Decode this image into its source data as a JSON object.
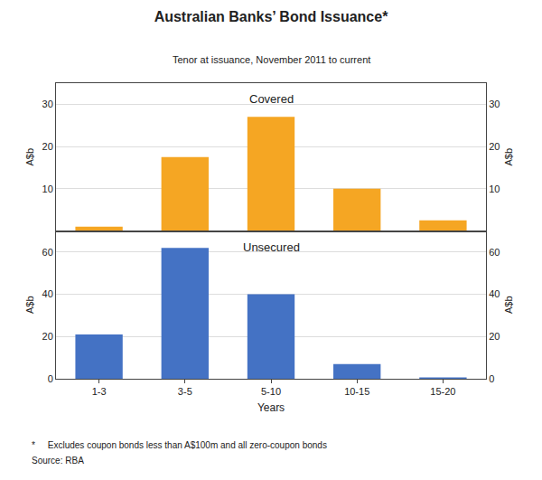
{
  "title": "Australian Banks’ Bond Issuance*",
  "subtitle": "Tenor at issuance, November 2011 to current",
  "footnotes": [
    "*     Excludes coupon bonds less than A$100m and all zero-coupon bonds",
    "Source: RBA"
  ],
  "chart_data": [
    {
      "type": "bar",
      "categories": [
        "1-3",
        "3-5",
        "5-10",
        "10-15",
        "15-20"
      ],
      "values": [
        1.0,
        17.5,
        27.0,
        10.0,
        2.5
      ],
      "color": "#F5A623",
      "annotation": "Covered",
      "ylabel": "A$b",
      "y2label": "A$b",
      "ylim": [
        0,
        35
      ],
      "yticks": [
        10,
        20,
        30
      ],
      "y2lim": [
        0,
        35
      ],
      "y2ticks": [
        10,
        20,
        30
      ],
      "grid": true,
      "tick_labels": "y"
    },
    {
      "type": "bar",
      "categories": [
        "1-3",
        "3-5",
        "5-10",
        "10-15",
        "15-20"
      ],
      "values": [
        21.0,
        62.0,
        40.0,
        7.0,
        0.5
      ],
      "color": "#4472C4",
      "annotation": "Unsecured",
      "xlabel": "Years",
      "ylabel": "A$b",
      "y2label": "A$b",
      "ylim": [
        0,
        70
      ],
      "yticks": [
        0,
        20,
        40,
        60
      ],
      "y2lim": [
        0,
        70
      ],
      "y2ticks": [
        0,
        20,
        40,
        60
      ],
      "grid": true
    }
  ]
}
